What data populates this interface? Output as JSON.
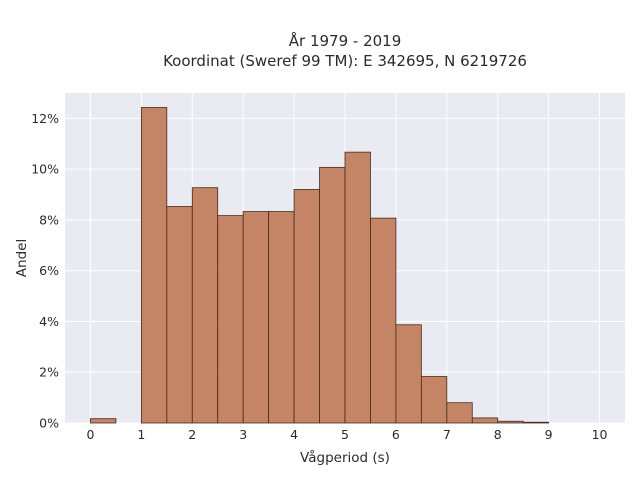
{
  "chart_data": {
    "type": "bar",
    "title": "År 1979 - 2019",
    "subtitle": "Koordinat (Sweref 99 TM): E 342695, N 6219726",
    "xlabel": "Vågperiod (s)",
    "ylabel": "Andel",
    "xlim": [
      -0.5,
      10.5
    ],
    "ylim": [
      0,
      0.13
    ],
    "x_ticks": [
      0,
      1,
      2,
      3,
      4,
      5,
      6,
      7,
      8,
      9,
      10
    ],
    "x_tick_labels": [
      "0",
      "1",
      "2",
      "3",
      "4",
      "5",
      "6",
      "7",
      "8",
      "9",
      "10"
    ],
    "y_ticks": [
      0,
      0.02,
      0.04,
      0.06,
      0.08,
      0.1,
      0.12
    ],
    "y_tick_labels": [
      "0%",
      "2%",
      "4%",
      "6%",
      "8%",
      "10%",
      "12%"
    ],
    "grid": true,
    "bin_width": 0.5,
    "bin_starts": [
      0,
      1,
      1.5,
      2,
      2.5,
      3,
      3.5,
      4,
      4.5,
      5,
      5.5,
      6,
      6.5,
      7,
      7.5,
      8,
      8.5
    ],
    "values": [
      0.0017,
      0.1243,
      0.0853,
      0.0927,
      0.0817,
      0.0833,
      0.0833,
      0.092,
      0.1007,
      0.1067,
      0.0807,
      0.0387,
      0.0183,
      0.008,
      0.002,
      0.0007,
      0.0003
    ],
    "colors": {
      "bar_fill": "#bf7a55",
      "bar_edge": "#4a2a1c",
      "plot_bg": "#eaeaf2",
      "grid": "#ffffff"
    }
  }
}
